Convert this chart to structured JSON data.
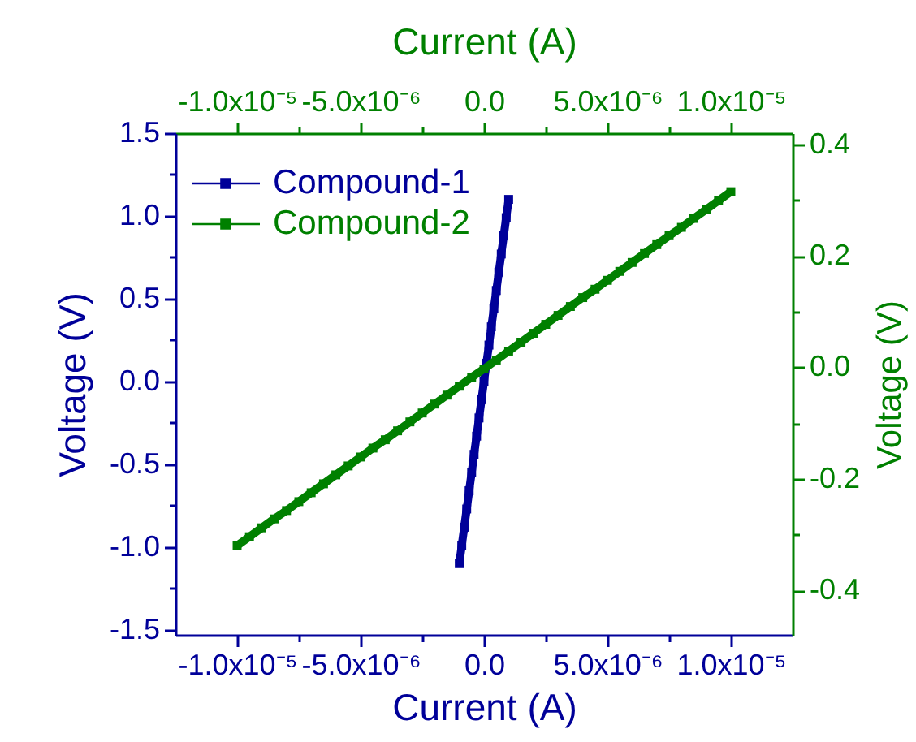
{
  "chart_data": {
    "type": "line",
    "xlabel": "Current (A)",
    "x2label": "Current (A)",
    "ylabel": "Voltage (V)",
    "y2label": "Voltage (V)",
    "xlim": [
      -1.25e-05,
      1.25e-05
    ],
    "x2lim": [
      -1.25e-05,
      1.25e-05
    ],
    "ylim": [
      -1.53,
      1.5
    ],
    "y2lim": [
      -0.48,
      0.42
    ],
    "xticks": [
      {
        "value": -1e-05,
        "label": "-1.0x10⁻⁵"
      },
      {
        "value": -7.5e-06,
        "label": null
      },
      {
        "value": -5e-06,
        "label": "-5.0x10⁻⁶"
      },
      {
        "value": -2.5e-06,
        "label": null
      },
      {
        "value": 0,
        "label": "0.0"
      },
      {
        "value": 2.5e-06,
        "label": null
      },
      {
        "value": 5e-06,
        "label": "5.0x10⁻⁶"
      },
      {
        "value": 7.5e-06,
        "label": null
      },
      {
        "value": 1e-05,
        "label": "1.0x10⁻⁵"
      }
    ],
    "x2ticks": [
      {
        "value": -1e-05,
        "label": "-1.0x10⁻⁵"
      },
      {
        "value": -7.5e-06,
        "label": null
      },
      {
        "value": -5e-06,
        "label": "-5.0x10⁻⁶"
      },
      {
        "value": -2.5e-06,
        "label": null
      },
      {
        "value": 0,
        "label": "0.0"
      },
      {
        "value": 2.5e-06,
        "label": null
      },
      {
        "value": 5e-06,
        "label": "5.0x10⁻⁶"
      },
      {
        "value": 7.5e-06,
        "label": null
      },
      {
        "value": 1e-05,
        "label": "1.0x10⁻⁵"
      }
    ],
    "yticks": [
      -1.5,
      {
        "value": -1.25,
        "label": null
      },
      {
        "value": -1.0,
        "label": "-1.0"
      },
      {
        "value": -0.75,
        "label": null
      },
      -0.5,
      {
        "value": -0.25,
        "label": null
      },
      {
        "value": 0,
        "label": "0.0"
      },
      {
        "value": 0.25,
        "label": null
      },
      0.5,
      {
        "value": 0.75,
        "label": null
      },
      {
        "value": 1.0,
        "label": "1.0"
      },
      {
        "value": 1.25,
        "label": null
      },
      1.5
    ],
    "y2ticks": [
      -0.4,
      {
        "value": -0.3,
        "label": null
      },
      -0.2,
      {
        "value": -0.1,
        "label": null
      },
      {
        "value": 0,
        "label": "0.0"
      },
      {
        "value": 0.1,
        "label": null
      },
      0.2,
      {
        "value": 0.3,
        "label": null
      },
      0.4
    ],
    "legend": "top left",
    "marker": "square",
    "line_style": "solid",
    "series": [
      {
        "name": "Compound-1",
        "color": "#000099",
        "x": [
          -1e-06,
          -9e-07,
          -8e-07,
          -7e-07,
          -6e-07,
          -5e-07,
          -4e-07,
          -3e-07,
          -2e-07,
          -1e-07,
          0.0,
          1e-07,
          2e-07,
          3e-07,
          4e-07,
          5e-07,
          6e-07,
          7e-07,
          8e-07,
          9e-07,
          1e-06
        ],
        "values": [
          -1.1,
          -0.99,
          -0.88,
          -0.77,
          -0.66,
          -0.55,
          -0.44,
          -0.33,
          -0.22,
          -0.11,
          0.0,
          0.11,
          0.22,
          0.33,
          0.44,
          0.55,
          0.66,
          0.77,
          0.88,
          0.99,
          1.1
        ]
      },
      {
        "name": "Compound-2",
        "color": "#008000",
        "axis": "y2",
        "x": [
          -1e-05,
          -9.5e-06,
          -9e-06,
          -8.5e-06,
          -8e-06,
          -7.5e-06,
          -7e-06,
          -6.5e-06,
          -6e-06,
          -5.5e-06,
          -5e-06,
          -4.5e-06,
          -4e-06,
          -3.5e-06,
          -3e-06,
          -2.5e-06,
          -2e-06,
          -1.5e-06,
          -1e-06,
          -5e-07,
          0.0,
          5e-07,
          1e-06,
          1.5e-06,
          2e-06,
          2.5e-06,
          3e-06,
          3.5e-06,
          4e-06,
          4.5e-06,
          5e-06,
          5.5e-06,
          6e-06,
          6.5e-06,
          7e-06,
          7.5e-06,
          8e-06,
          8.5e-06,
          9e-06,
          9.5e-06,
          1e-05
        ],
        "values": [
          -0.32,
          -0.304,
          -0.288,
          -0.272,
          -0.257,
          -0.241,
          -0.225,
          -0.209,
          -0.193,
          -0.177,
          -0.161,
          -0.145,
          -0.13,
          -0.114,
          -0.098,
          -0.082,
          -0.066,
          -0.05,
          -0.034,
          -0.018,
          -0.003,
          0.013,
          0.029,
          0.045,
          0.061,
          0.077,
          0.093,
          0.109,
          0.125,
          0.14,
          0.156,
          0.172,
          0.188,
          0.204,
          0.22,
          0.236,
          0.251,
          0.267,
          0.283,
          0.299,
          0.315
        ]
      }
    ]
  }
}
